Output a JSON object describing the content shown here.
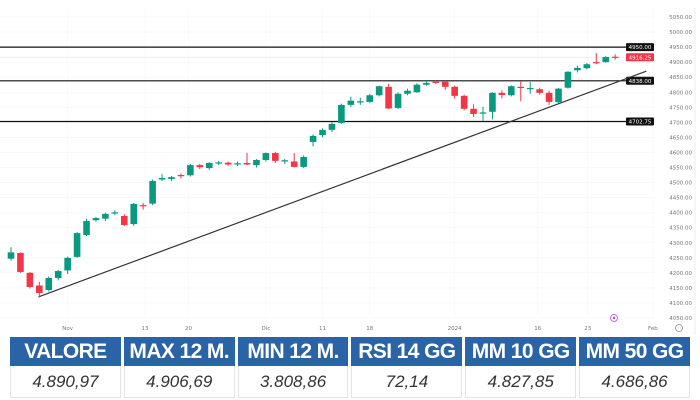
{
  "chart_data": {
    "type": "candlestick",
    "y_axis": {
      "min": 4050,
      "max": 5050,
      "step": 50,
      "ticks": [
        "5050.00",
        "5000.00",
        "4950.00",
        "4900.00",
        "4850.00",
        "4800.00",
        "4750.00",
        "4700.00",
        "4650.00",
        "4600.00",
        "4550.00",
        "4500.00",
        "4450.00",
        "4400.00",
        "4350.00",
        "4300.00",
        "4250.00",
        "4200.00",
        "4150.00",
        "4100.00",
        "4050.00"
      ]
    },
    "x_ticks": [
      {
        "label": "Nov",
        "index": 6
      },
      {
        "label": "13",
        "index": 14.2
      },
      {
        "label": "20",
        "index": 18.8
      },
      {
        "label": "Dic",
        "index": 27
      },
      {
        "label": "11",
        "index": 33
      },
      {
        "label": "18",
        "index": 38
      },
      {
        "label": "2024",
        "index": 47
      },
      {
        "label": "16",
        "index": 55.8
      },
      {
        "label": "23",
        "index": 61.1
      },
      {
        "label": "Feb",
        "index": 68
      }
    ],
    "levels": [
      {
        "label": "4950.00",
        "value": 4950,
        "color": "#111111"
      },
      {
        "label": "4838.00",
        "value": 4838,
        "color": "#111111"
      },
      {
        "label": "4702.75",
        "value": 4702.75,
        "color": "#111111"
      }
    ],
    "last_price": {
      "label": "4916.25",
      "value": 4916.25,
      "color": "#f23645"
    },
    "trendline": {
      "from": {
        "index": 2.9,
        "price": 4120
      },
      "to": {
        "index": 67.3,
        "price": 4870
      }
    },
    "up_color": "#089981",
    "down_color": "#f23645",
    "ohlc": [
      [
        4247,
        4285,
        4240,
        4268
      ],
      [
        4266,
        4268,
        4200,
        4203
      ],
      [
        4200,
        4203,
        4148,
        4153
      ],
      [
        4158,
        4170,
        4118,
        4133
      ],
      [
        4143,
        4188,
        4138,
        4183
      ],
      [
        4183,
        4210,
        4175,
        4206
      ],
      [
        4208,
        4254,
        4196,
        4250
      ],
      [
        4253,
        4336,
        4250,
        4332
      ],
      [
        4326,
        4380,
        4322,
        4372
      ],
      [
        4375,
        4386,
        4370,
        4382
      ],
      [
        4380,
        4400,
        4372,
        4396
      ],
      [
        4398,
        4408,
        4392,
        4401
      ],
      [
        4389,
        4395,
        4355,
        4359
      ],
      [
        4362,
        4432,
        4356,
        4429
      ],
      [
        4425,
        4432,
        4410,
        4422
      ],
      [
        4430,
        4510,
        4425,
        4505
      ],
      [
        4510,
        4528,
        4505,
        4515
      ],
      [
        4512,
        4522,
        4505,
        4518
      ],
      [
        4525,
        4530,
        4514,
        4522
      ],
      [
        4524,
        4562,
        4520,
        4558
      ],
      [
        4558,
        4562,
        4545,
        4551
      ],
      [
        4548,
        4568,
        4542,
        4565
      ],
      [
        4565,
        4572,
        4558,
        4567
      ],
      [
        4566,
        4570,
        4556,
        4560
      ],
      [
        4561,
        4570,
        4555,
        4564
      ],
      [
        4565,
        4598,
        4558,
        4560
      ],
      [
        4558,
        4578,
        4550,
        4575
      ],
      [
        4575,
        4600,
        4570,
        4598
      ],
      [
        4598,
        4602,
        4565,
        4572
      ],
      [
        4570,
        4578,
        4562,
        4574
      ],
      [
        4570,
        4598,
        4550,
        4552
      ],
      [
        4552,
        4590,
        4548,
        4585
      ],
      [
        4635,
        4660,
        4620,
        4655
      ],
      [
        4658,
        4680,
        4650,
        4675
      ],
      [
        4675,
        4700,
        4668,
        4695
      ],
      [
        4698,
        4762,
        4695,
        4758
      ],
      [
        4758,
        4785,
        4750,
        4772
      ],
      [
        4768,
        4782,
        4758,
        4770
      ],
      [
        4768,
        4795,
        4765,
        4790
      ],
      [
        4790,
        4822,
        4786,
        4820
      ],
      [
        4818,
        4828,
        4744,
        4746
      ],
      [
        4748,
        4800,
        4744,
        4795
      ],
      [
        4795,
        4812,
        4790,
        4805
      ],
      [
        4800,
        4830,
        4798,
        4825
      ],
      [
        4825,
        4838,
        4822,
        4831
      ],
      [
        4835,
        4840,
        4828,
        4832
      ],
      [
        4835,
        4838,
        4808,
        4818
      ],
      [
        4818,
        4822,
        4778,
        4788
      ],
      [
        4788,
        4792,
        4740,
        4745
      ],
      [
        4745,
        4760,
        4718,
        4728
      ],
      [
        4730,
        4752,
        4705,
        4733
      ],
      [
        4735,
        4800,
        4710,
        4798
      ],
      [
        4798,
        4806,
        4780,
        4791
      ],
      [
        4790,
        4823,
        4786,
        4820
      ],
      [
        4818,
        4836,
        4770,
        4816
      ],
      [
        4812,
        4834,
        4795,
        4814
      ],
      [
        4810,
        4815,
        4792,
        4798
      ],
      [
        4798,
        4805,
        4758,
        4768
      ],
      [
        4767,
        4814,
        4764,
        4812
      ],
      [
        4815,
        4870,
        4812,
        4868
      ],
      [
        4873,
        4888,
        4866,
        4881
      ],
      [
        4880,
        4897,
        4876,
        4893
      ],
      [
        4900,
        4930,
        4893,
        4898
      ],
      [
        4900,
        4920,
        4898,
        4917
      ],
      [
        4918,
        4926,
        4908,
        4916
      ]
    ]
  },
  "table": {
    "headers": [
      "VALORE",
      "MAX 12 M.",
      "MIN 12 M.",
      "RSI 14 GG",
      "MM 10 GG",
      "MM 50 GG"
    ],
    "values": [
      "4.890,97",
      "4.906,69",
      "3.808,86",
      "72,14",
      "4.827,85",
      "4.686,86"
    ]
  },
  "icons": {
    "event": "event-marker-icon",
    "settings": "axis-settings-icon"
  }
}
